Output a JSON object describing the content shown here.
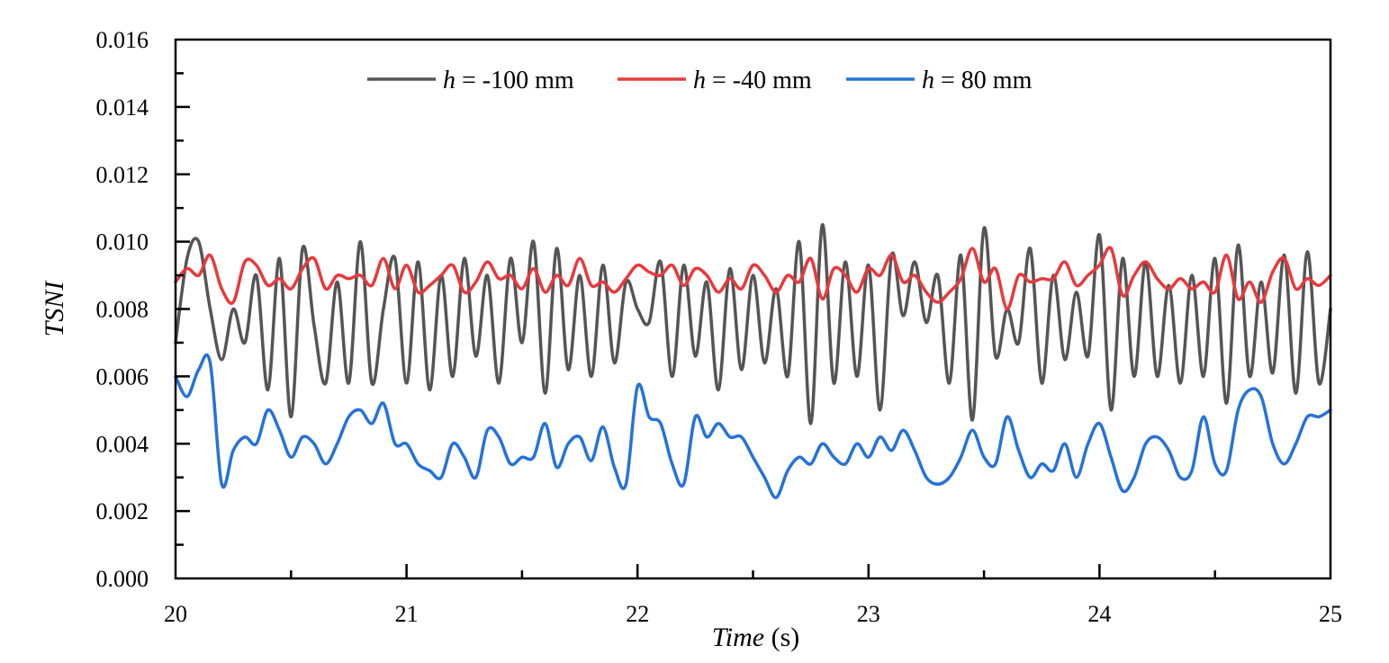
{
  "chart_data": {
    "type": "line",
    "title": "",
    "xlabel": {
      "italic": "Time",
      "rest": " (s)"
    },
    "ylabel": "TSNI",
    "xlim": [
      20,
      25
    ],
    "ylim": [
      0,
      0.016
    ],
    "x_ticks": [
      "20",
      "21",
      "22",
      "23",
      "24",
      "25"
    ],
    "y_ticks": [
      "0.000",
      "0.002",
      "0.004",
      "0.006",
      "0.008",
      "0.010",
      "0.012",
      "0.014",
      "0.016"
    ],
    "x_step": 0.01,
    "grid": false,
    "legend_position": "top-center",
    "series": [
      {
        "name": "h = -100 mm",
        "label_italic": "h",
        "label_rest": " = -100 mm",
        "color": "#555555",
        "x": [
          20,
          20.05,
          20.1,
          20.15,
          20.2,
          20.25,
          20.3,
          20.35,
          20.4,
          20.45,
          20.5,
          20.55,
          20.6,
          20.65,
          20.7,
          20.75,
          20.8,
          20.85,
          20.9,
          20.95,
          21.0,
          21.05,
          21.1,
          21.15,
          21.2,
          21.25,
          21.3,
          21.35,
          21.4,
          21.45,
          21.5,
          21.55,
          21.6,
          21.65,
          21.7,
          21.75,
          21.8,
          21.85,
          21.9,
          21.95,
          22.0,
          22.05,
          22.1,
          22.15,
          22.2,
          22.25,
          22.3,
          22.35,
          22.4,
          22.45,
          22.5,
          22.55,
          22.6,
          22.65,
          22.7,
          22.75,
          22.8,
          22.85,
          22.9,
          22.95,
          23.0,
          23.05,
          23.1,
          23.15,
          23.2,
          23.25,
          23.3,
          23.35,
          23.4,
          23.45,
          23.5,
          23.55,
          23.6,
          23.65,
          23.7,
          23.75,
          23.8,
          23.85,
          23.9,
          23.95,
          24.0,
          24.05,
          24.1,
          24.15,
          24.2,
          24.25,
          24.3,
          24.35,
          24.4,
          24.45,
          24.5,
          24.55,
          24.6,
          24.65,
          24.7,
          24.75,
          24.8,
          24.85,
          24.9,
          24.95,
          25.0
        ],
        "y": [
          0.007,
          0.0095,
          0.01,
          0.008,
          0.0065,
          0.008,
          0.007,
          0.009,
          0.0056,
          0.0095,
          0.0048,
          0.0098,
          0.0075,
          0.0058,
          0.0088,
          0.0058,
          0.01,
          0.0058,
          0.008,
          0.0095,
          0.0058,
          0.0094,
          0.0056,
          0.009,
          0.006,
          0.0095,
          0.0066,
          0.009,
          0.0058,
          0.0095,
          0.007,
          0.01,
          0.0055,
          0.0098,
          0.0062,
          0.009,
          0.006,
          0.0093,
          0.0064,
          0.0088,
          0.008,
          0.0076,
          0.0094,
          0.006,
          0.0093,
          0.0066,
          0.0088,
          0.0056,
          0.0092,
          0.0062,
          0.009,
          0.0064,
          0.0086,
          0.006,
          0.01,
          0.0046,
          0.0105,
          0.0058,
          0.0094,
          0.006,
          0.0093,
          0.005,
          0.0096,
          0.0078,
          0.0094,
          0.0076,
          0.009,
          0.0058,
          0.0096,
          0.0047,
          0.0104,
          0.0066,
          0.008,
          0.007,
          0.0098,
          0.0058,
          0.009,
          0.0065,
          0.0085,
          0.0066,
          0.0102,
          0.005,
          0.0095,
          0.006,
          0.0094,
          0.006,
          0.0087,
          0.0058,
          0.009,
          0.006,
          0.0095,
          0.0052,
          0.0099,
          0.006,
          0.0088,
          0.0061,
          0.0096,
          0.0055,
          0.0097,
          0.0058,
          0.008
        ]
      },
      {
        "name": "h = -40 mm",
        "label_italic": "h",
        "label_rest": " = -40 mm",
        "color": "#e8393c",
        "x": [
          20,
          20.05,
          20.1,
          20.15,
          20.2,
          20.25,
          20.3,
          20.35,
          20.4,
          20.45,
          20.5,
          20.55,
          20.6,
          20.65,
          20.7,
          20.75,
          20.8,
          20.85,
          20.9,
          20.95,
          21.0,
          21.05,
          21.1,
          21.15,
          21.2,
          21.25,
          21.3,
          21.35,
          21.4,
          21.45,
          21.5,
          21.55,
          21.6,
          21.65,
          21.7,
          21.75,
          21.8,
          21.85,
          21.9,
          21.95,
          22.0,
          22.05,
          22.1,
          22.15,
          22.2,
          22.25,
          22.3,
          22.35,
          22.4,
          22.45,
          22.5,
          22.55,
          22.6,
          22.65,
          22.7,
          22.75,
          22.8,
          22.85,
          22.9,
          22.95,
          23.0,
          23.05,
          23.1,
          23.15,
          23.2,
          23.25,
          23.3,
          23.35,
          23.4,
          23.45,
          23.5,
          23.55,
          23.6,
          23.65,
          23.7,
          23.75,
          23.8,
          23.85,
          23.9,
          23.95,
          24.0,
          24.05,
          24.1,
          24.15,
          24.2,
          24.25,
          24.3,
          24.35,
          24.4,
          24.45,
          24.5,
          24.55,
          24.6,
          24.65,
          24.7,
          24.75,
          24.8,
          24.85,
          24.9,
          24.95,
          25.0
        ],
        "y": [
          0.0088,
          0.0092,
          0.009,
          0.0096,
          0.0086,
          0.0082,
          0.0094,
          0.0093,
          0.0087,
          0.0089,
          0.0086,
          0.0092,
          0.0095,
          0.0086,
          0.009,
          0.0089,
          0.009,
          0.0087,
          0.0095,
          0.0086,
          0.0093,
          0.0085,
          0.0087,
          0.009,
          0.0093,
          0.0085,
          0.0088,
          0.0094,
          0.0089,
          0.009,
          0.0086,
          0.0092,
          0.0085,
          0.009,
          0.0087,
          0.0095,
          0.0087,
          0.0088,
          0.0085,
          0.0089,
          0.0093,
          0.0091,
          0.009,
          0.0093,
          0.0087,
          0.0092,
          0.009,
          0.0085,
          0.0089,
          0.0086,
          0.0093,
          0.009,
          0.0085,
          0.009,
          0.0088,
          0.0095,
          0.0083,
          0.0092,
          0.009,
          0.0085,
          0.0092,
          0.009,
          0.0096,
          0.0088,
          0.009,
          0.0085,
          0.0082,
          0.0085,
          0.0089,
          0.0098,
          0.0088,
          0.0092,
          0.008,
          0.009,
          0.0088,
          0.0089,
          0.0089,
          0.0094,
          0.0087,
          0.009,
          0.0093,
          0.0098,
          0.0084,
          0.009,
          0.0094,
          0.0089,
          0.0086,
          0.0089,
          0.0086,
          0.0088,
          0.0085,
          0.0096,
          0.0083,
          0.0088,
          0.0082,
          0.0091,
          0.0095,
          0.0086,
          0.0089,
          0.0087,
          0.009
        ]
      },
      {
        "name": "h = 80 mm",
        "label_italic": "h",
        "label_rest": " = 80 mm",
        "color": "#2672d8",
        "x": [
          20,
          20.05,
          20.1,
          20.15,
          20.2,
          20.25,
          20.3,
          20.35,
          20.4,
          20.45,
          20.5,
          20.55,
          20.6,
          20.65,
          20.7,
          20.75,
          20.8,
          20.85,
          20.9,
          20.95,
          21.0,
          21.05,
          21.1,
          21.15,
          21.2,
          21.25,
          21.3,
          21.35,
          21.4,
          21.45,
          21.5,
          21.55,
          21.6,
          21.65,
          21.7,
          21.75,
          21.8,
          21.85,
          21.9,
          21.95,
          22.0,
          22.05,
          22.1,
          22.15,
          22.2,
          22.25,
          22.3,
          22.35,
          22.4,
          22.45,
          22.5,
          22.55,
          22.6,
          22.65,
          22.7,
          22.75,
          22.8,
          22.85,
          22.9,
          22.95,
          23.0,
          23.05,
          23.1,
          23.15,
          23.2,
          23.25,
          23.3,
          23.35,
          23.4,
          23.45,
          23.5,
          23.55,
          23.6,
          23.65,
          23.7,
          23.75,
          23.8,
          23.85,
          23.9,
          23.95,
          24.0,
          24.05,
          24.1,
          24.15,
          24.2,
          24.25,
          24.3,
          24.35,
          24.4,
          24.45,
          24.5,
          24.55,
          24.6,
          24.65,
          24.7,
          24.75,
          24.8,
          24.85,
          24.9,
          24.95,
          25.0
        ],
        "y": [
          0.006,
          0.0054,
          0.0062,
          0.0064,
          0.0028,
          0.0038,
          0.0042,
          0.004,
          0.005,
          0.0044,
          0.0036,
          0.0042,
          0.004,
          0.0034,
          0.004,
          0.0048,
          0.005,
          0.0046,
          0.0052,
          0.004,
          0.004,
          0.0034,
          0.0032,
          0.003,
          0.004,
          0.0036,
          0.003,
          0.0044,
          0.0042,
          0.0034,
          0.0036,
          0.0036,
          0.0046,
          0.0033,
          0.004,
          0.0042,
          0.0035,
          0.0045,
          0.0033,
          0.0028,
          0.0057,
          0.0048,
          0.0046,
          0.0034,
          0.0028,
          0.0048,
          0.0042,
          0.0046,
          0.0042,
          0.0042,
          0.0036,
          0.003,
          0.0024,
          0.0032,
          0.0036,
          0.0034,
          0.004,
          0.0036,
          0.0034,
          0.004,
          0.0036,
          0.0042,
          0.0038,
          0.0044,
          0.0038,
          0.003,
          0.0028,
          0.003,
          0.0036,
          0.0044,
          0.0036,
          0.0034,
          0.0048,
          0.0038,
          0.003,
          0.0034,
          0.0032,
          0.004,
          0.003,
          0.004,
          0.0046,
          0.0036,
          0.0026,
          0.003,
          0.004,
          0.0042,
          0.0038,
          0.003,
          0.0032,
          0.0048,
          0.0034,
          0.0032,
          0.005,
          0.0056,
          0.0054,
          0.004,
          0.0034,
          0.004,
          0.0048,
          0.0048,
          0.005
        ]
      }
    ]
  }
}
